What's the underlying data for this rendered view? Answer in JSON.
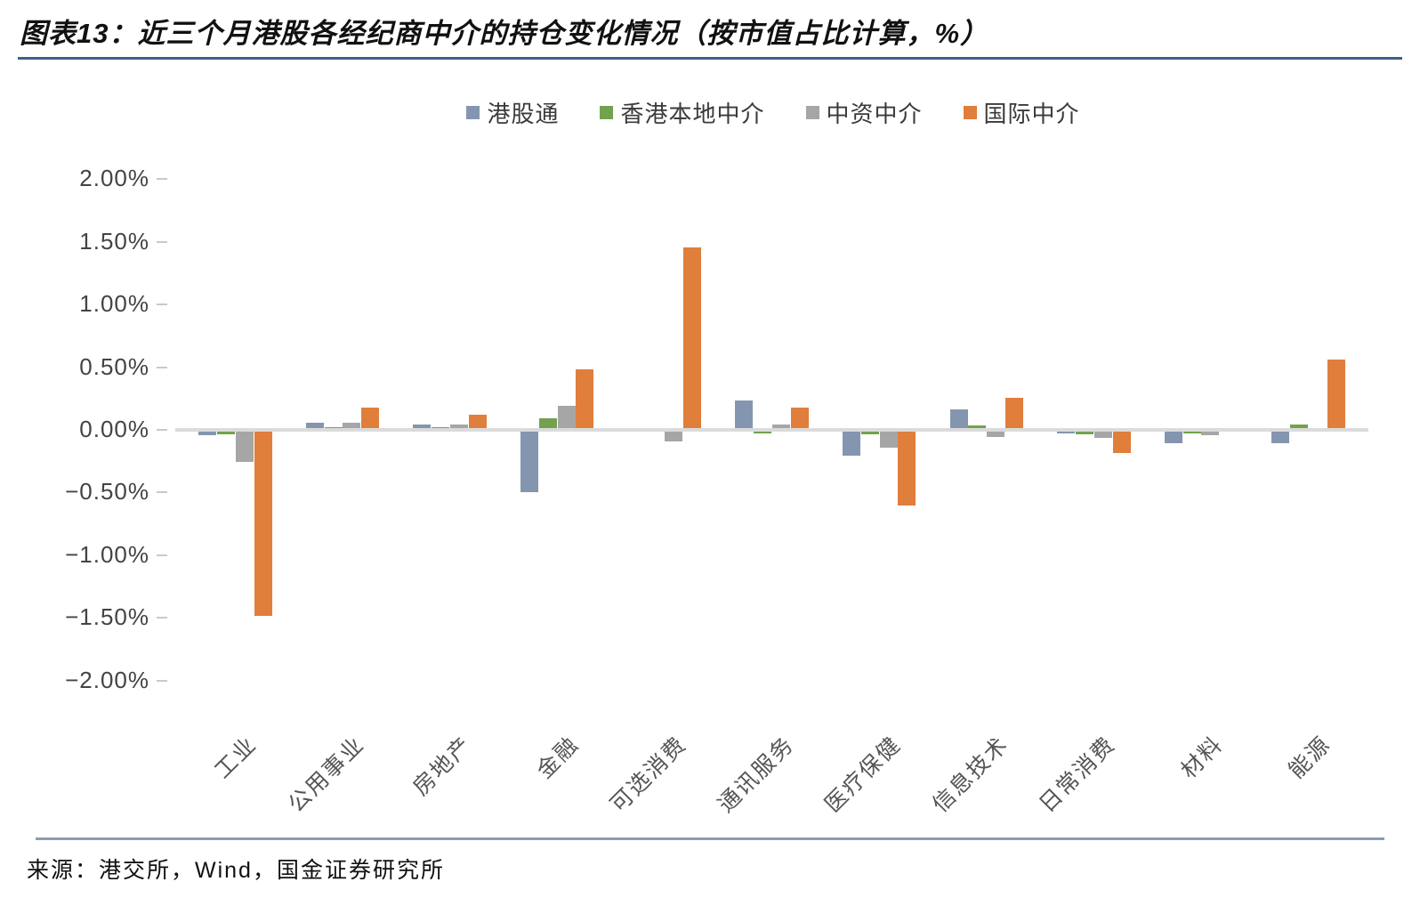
{
  "title": "图表13：近三个月港股各经纪商中介的持仓变化情况（按市值占比计算，%）",
  "source": "来源：港交所，Wind，国金证券研究所",
  "colors": {
    "hgk_blue": "#8496af",
    "hk_green": "#73a24e",
    "cn_gray": "#a6a6a6",
    "intl_orange": "#e07e3c",
    "zero_line": "#dbdbdb",
    "title_rule": "#3d5f8a",
    "footer_rule": "#8c9db3"
  },
  "chart_data": {
    "type": "bar",
    "title": "",
    "xlabel": "",
    "ylabel": "",
    "grid": false,
    "legend_position": "top",
    "ylim": [
      -2.0,
      2.0
    ],
    "ytick_step": 0.5,
    "ytick_labels": [
      "2.00%",
      "1.50%",
      "1.00%",
      "0.50%",
      "0.00%",
      "−0.50%",
      "−1.00%",
      "−1.50%",
      "−2.00%"
    ],
    "categories": [
      "工业",
      "公用事业",
      "房地产",
      "金融",
      "可选消费",
      "通讯服务",
      "医疗保健",
      "信息技术",
      "日常消费",
      "材料",
      "能源"
    ],
    "series": [
      {
        "name": "港股通",
        "color": "#8496af",
        "values": [
          -0.03,
          0.04,
          0.03,
          -0.48,
          0.0,
          0.22,
          -0.19,
          0.15,
          -0.01,
          -0.09,
          -0.09
        ]
      },
      {
        "name": "香港本地中介",
        "color": "#73a24e",
        "values": [
          -0.02,
          0.01,
          0.01,
          0.08,
          0.0,
          -0.01,
          -0.02,
          0.02,
          -0.02,
          -0.01,
          0.03
        ]
      },
      {
        "name": "中资中介",
        "color": "#a6a6a6",
        "values": [
          -0.24,
          0.04,
          0.03,
          0.18,
          -0.08,
          0.03,
          -0.13,
          -0.04,
          -0.05,
          -0.03,
          0.0
        ]
      },
      {
        "name": "国际中介",
        "color": "#e07e3c",
        "values": [
          -1.47,
          0.16,
          0.11,
          0.47,
          1.44,
          0.16,
          -0.59,
          0.24,
          -0.17,
          0.0,
          0.55
        ]
      }
    ]
  }
}
